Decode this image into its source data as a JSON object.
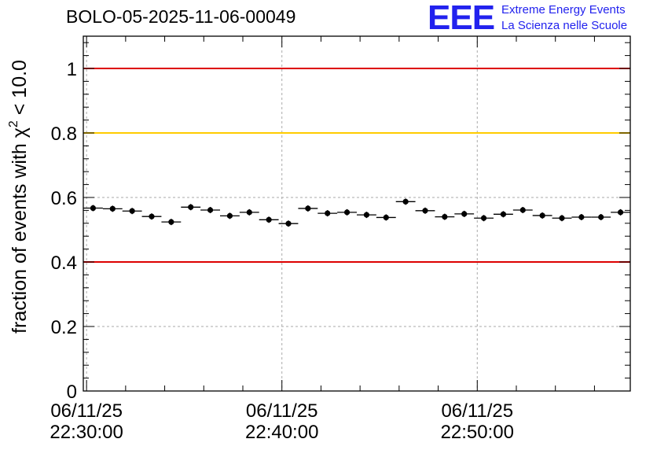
{
  "title": "BOLO-05-2025-11-06-00049",
  "logo": {
    "mark": "EEE",
    "line1": "Extreme Energy Events",
    "line2": "La Scienza nelle Scuole"
  },
  "colors": {
    "red_line": "#dd0000",
    "yellow_line": "#ffcc00",
    "logo_blue": "#2222ee",
    "marker": "#000000"
  },
  "chart_data": {
    "type": "scatter",
    "ylabel_prefix": "fraction of events with ",
    "ylabel_chi": "χ",
    "ylabel_sup": "2",
    "ylabel_suffix": " < 10.0",
    "ylim": [
      0,
      1.1
    ],
    "y_ticks": [
      0,
      0.2,
      0.4,
      0.6,
      0.8,
      1
    ],
    "y_tick_labels": [
      "0",
      "0.2",
      "0.4",
      "0.6",
      "0.8",
      "1"
    ],
    "xlim": [
      "22:29:50",
      "22:57:50"
    ],
    "x_ticks": [
      {
        "time": "22:30:00",
        "date_label": "06/11/25",
        "time_label": "22:30:00"
      },
      {
        "time": "22:40:00",
        "date_label": "06/11/25",
        "time_label": "22:40:00"
      },
      {
        "time": "22:50:00",
        "date_label": "06/11/25",
        "time_label": "22:50:00"
      }
    ],
    "grid": true,
    "reference_lines": [
      {
        "y": 1.0,
        "color": "red"
      },
      {
        "y": 0.8,
        "color": "yellow"
      },
      {
        "y": 0.4,
        "color": "red"
      }
    ],
    "bin_width_minutes": 1,
    "points": [
      {
        "x": "22:30:20",
        "y": 0.567
      },
      {
        "x": "22:31:20",
        "y": 0.565
      },
      {
        "x": "22:32:20",
        "y": 0.558
      },
      {
        "x": "22:33:20",
        "y": 0.541
      },
      {
        "x": "22:34:20",
        "y": 0.524
      },
      {
        "x": "22:35:20",
        "y": 0.57
      },
      {
        "x": "22:36:20",
        "y": 0.561
      },
      {
        "x": "22:37:20",
        "y": 0.543
      },
      {
        "x": "22:38:20",
        "y": 0.554
      },
      {
        "x": "22:39:20",
        "y": 0.531
      },
      {
        "x": "22:40:20",
        "y": 0.519
      },
      {
        "x": "22:41:20",
        "y": 0.566
      },
      {
        "x": "22:42:20",
        "y": 0.551
      },
      {
        "x": "22:43:20",
        "y": 0.554
      },
      {
        "x": "22:44:20",
        "y": 0.546
      },
      {
        "x": "22:45:20",
        "y": 0.538
      },
      {
        "x": "22:46:20",
        "y": 0.587
      },
      {
        "x": "22:47:20",
        "y": 0.559
      },
      {
        "x": "22:48:20",
        "y": 0.54
      },
      {
        "x": "22:49:20",
        "y": 0.549
      },
      {
        "x": "22:50:20",
        "y": 0.536
      },
      {
        "x": "22:51:20",
        "y": 0.548
      },
      {
        "x": "22:52:20",
        "y": 0.561
      },
      {
        "x": "22:53:20",
        "y": 0.544
      },
      {
        "x": "22:54:20",
        "y": 0.536
      },
      {
        "x": "22:55:20",
        "y": 0.539
      },
      {
        "x": "22:56:20",
        "y": 0.539
      },
      {
        "x": "22:57:20",
        "y": 0.554
      }
    ]
  }
}
